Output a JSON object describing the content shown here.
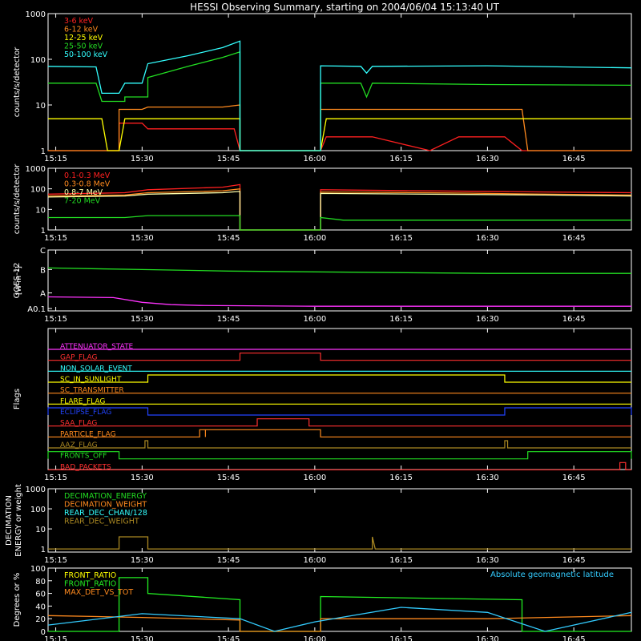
{
  "title": "HESSI Observing Summary, starting on 2004/06/04 15:13:40 UT",
  "time_axis": {
    "unit": "UT",
    "start": "15:13:40",
    "end": "16:55:00",
    "ticks": [
      "15:15",
      "15:30",
      "15:45",
      "16:00",
      "16:15",
      "16:30",
      "16:45"
    ]
  },
  "chart_data": [
    {
      "id": "low-energy",
      "type": "line",
      "ylabel": "counts/s/detector",
      "yscale": "log",
      "ylim": [
        1,
        1000
      ],
      "yticks": [
        "1",
        "10",
        "100",
        "1000"
      ],
      "legend": "top-left",
      "series": [
        {
          "name": "3-6 keV",
          "color": "#ff2020",
          "points": [
            [
              "15:13:40",
              1
            ],
            [
              "15:26",
              1
            ],
            [
              "15:26",
              4
            ],
            [
              "15:30",
              4
            ],
            [
              "15:31",
              3
            ],
            [
              "15:43",
              3
            ],
            [
              "15:46",
              3
            ],
            [
              "15:47",
              1
            ],
            [
              "16:01",
              1
            ],
            [
              "16:02",
              2
            ],
            [
              "16:10",
              2
            ],
            [
              "16:20",
              1
            ],
            [
              "16:25",
              2
            ],
            [
              "16:33",
              2
            ],
            [
              "16:36",
              1
            ],
            [
              "16:55",
              1
            ]
          ]
        },
        {
          "name": "6-12 keV",
          "color": "#ff8a1e",
          "points": [
            [
              "15:13:40",
              1
            ],
            [
              "15:26",
              1
            ],
            [
              "15:26",
              8
            ],
            [
              "15:30",
              8
            ],
            [
              "15:31",
              9
            ],
            [
              "15:44",
              9
            ],
            [
              "15:47",
              10
            ],
            [
              "15:47",
              1
            ],
            [
              "16:01",
              1
            ],
            [
              "16:01",
              8
            ],
            [
              "16:36",
              8
            ],
            [
              "16:37",
              1
            ],
            [
              "16:55",
              1
            ]
          ]
        },
        {
          "name": "12-25 keV",
          "color": "#ffff00",
          "points": [
            [
              "15:13:40",
              5
            ],
            [
              "15:23",
              5
            ],
            [
              "15:24",
              1
            ],
            [
              "15:26",
              1
            ],
            [
              "15:27",
              5
            ],
            [
              "15:47",
              5
            ],
            [
              "15:47",
              1
            ],
            [
              "16:01",
              1
            ],
            [
              "16:02",
              5
            ],
            [
              "16:36",
              5
            ],
            [
              "16:38",
              5
            ],
            [
              "16:55",
              5
            ]
          ]
        },
        {
          "name": "25-50 keV",
          "color": "#22dd22",
          "points": [
            [
              "15:13:40",
              30
            ],
            [
              "15:22",
              30
            ],
            [
              "15:23",
              12
            ],
            [
              "15:27",
              12
            ],
            [
              "15:27",
              15
            ],
            [
              "15:31",
              15
            ],
            [
              "15:31",
              40
            ],
            [
              "15:38",
              70
            ],
            [
              "15:44",
              110
            ],
            [
              "15:47",
              145
            ],
            [
              "15:47",
              1
            ],
            [
              "16:01",
              1
            ],
            [
              "16:01",
              30
            ],
            [
              "16:08",
              30
            ],
            [
              "16:09",
              15
            ],
            [
              "16:10",
              30
            ],
            [
              "16:30",
              28
            ],
            [
              "16:55",
              27
            ]
          ]
        },
        {
          "name": "50-100 keV",
          "color": "#33ffff",
          "points": [
            [
              "15:13:40",
              70
            ],
            [
              "15:22",
              68
            ],
            [
              "15:23",
              18
            ],
            [
              "15:26",
              18
            ],
            [
              "15:27",
              30
            ],
            [
              "15:30",
              30
            ],
            [
              "15:31",
              80
            ],
            [
              "15:38",
              120
            ],
            [
              "15:44",
              180
            ],
            [
              "15:47",
              250
            ],
            [
              "15:47",
              1
            ],
            [
              "16:01",
              1
            ],
            [
              "16:01",
              72
            ],
            [
              "16:08",
              70
            ],
            [
              "16:09",
              50
            ],
            [
              "16:10",
              70
            ],
            [
              "16:30",
              72
            ],
            [
              "16:55",
              65
            ]
          ]
        }
      ]
    },
    {
      "id": "high-energy",
      "type": "line",
      "ylabel": "counts/s/detector",
      "yscale": "log",
      "ylim": [
        1,
        1000
      ],
      "yticks": [
        "1",
        "10",
        "100",
        "1000"
      ],
      "legend": "top-left",
      "series": [
        {
          "name": "0.1-0.3 MeV",
          "color": "#ff2020",
          "points": [
            [
              "15:13:40",
              55
            ],
            [
              "15:27",
              65
            ],
            [
              "15:31",
              90
            ],
            [
              "15:44",
              120
            ],
            [
              "15:47",
              160
            ],
            [
              "15:47",
              1
            ],
            [
              "16:01",
              1
            ],
            [
              "16:01",
              90
            ],
            [
              "16:20",
              80
            ],
            [
              "16:40",
              70
            ],
            [
              "16:55",
              65
            ]
          ]
        },
        {
          "name": "0.3-0.8 MeV",
          "color": "#ff8a1e",
          "points": [
            [
              "15:13:40",
              45
            ],
            [
              "15:27",
              50
            ],
            [
              "15:31",
              65
            ],
            [
              "15:44",
              80
            ],
            [
              "15:47",
              100
            ],
            [
              "15:47",
              1
            ],
            [
              "16:01",
              1
            ],
            [
              "16:01",
              70
            ],
            [
              "16:20",
              65
            ],
            [
              "16:40",
              55
            ],
            [
              "16:55",
              50
            ]
          ]
        },
        {
          "name": "0.8-7 MeV",
          "color": "#ffffaa",
          "points": [
            [
              "15:13:40",
              40
            ],
            [
              "15:27",
              45
            ],
            [
              "15:31",
              55
            ],
            [
              "15:44",
              65
            ],
            [
              "15:47",
              75
            ],
            [
              "15:47",
              1
            ],
            [
              "16:01",
              1
            ],
            [
              "16:01",
              60
            ],
            [
              "16:20",
              55
            ],
            [
              "16:40",
              50
            ],
            [
              "16:55",
              45
            ]
          ]
        },
        {
          "name": "7-20 MeV",
          "color": "#22dd22",
          "points": [
            [
              "15:13:40",
              4
            ],
            [
              "15:27",
              4
            ],
            [
              "15:31",
              5
            ],
            [
              "15:44",
              5
            ],
            [
              "15:47",
              5
            ],
            [
              "15:47",
              1
            ],
            [
              "16:01",
              1
            ],
            [
              "16:01",
              4
            ],
            [
              "16:05",
              3
            ],
            [
              "16:30",
              3
            ],
            [
              "16:55",
              3
            ]
          ]
        }
      ]
    },
    {
      "id": "goes",
      "type": "line",
      "ylabel": "GOES-12",
      "yunit": "[W m⁻²]",
      "yscale": "log",
      "yticks": [
        "A0.1",
        "A",
        "B",
        "C"
      ],
      "series": [
        {
          "color": "#22dd22",
          "points": [
            [
              "15:13:40",
              6.2
            ],
            [
              "15:30",
              6.0
            ],
            [
              "15:45",
              5.8
            ],
            [
              "16:00",
              5.7
            ],
            [
              "16:30",
              5.5
            ],
            [
              "16:55",
              5.5
            ]
          ]
        },
        {
          "color": "#ff33ff",
          "points": [
            [
              "15:13:40",
              2.5
            ],
            [
              "15:25",
              2.4
            ],
            [
              "15:30",
              1.8
            ],
            [
              "15:35",
              1.5
            ],
            [
              "15:40",
              1.4
            ],
            [
              "16:00",
              1.3
            ],
            [
              "16:55",
              1.3
            ]
          ]
        }
      ]
    },
    {
      "id": "flags",
      "type": "line",
      "ylabel": "Flags",
      "series": [
        {
          "name": "ATTENUATOR_STATE",
          "color": "#ff33ff",
          "on": []
        },
        {
          "name": "GAP_FLAG",
          "color": "#ff3030",
          "on": [
            [
              "15:47",
              "16:01"
            ]
          ]
        },
        {
          "name": "NON_SOLAR_EVENT",
          "color": "#33ffff",
          "on": []
        },
        {
          "name": "SC_IN_SUNLIGHT",
          "color": "#ffff00",
          "on": [
            [
              "15:31",
              "16:33"
            ]
          ]
        },
        {
          "name": "SC_TRANSMITTER",
          "color": "#ff8a1e",
          "on": []
        },
        {
          "name": "FLARE_FLAG",
          "color": "#ffff00",
          "on": []
        },
        {
          "name": "ECLIPSE_FLAG",
          "color": "#2244ff",
          "on": [
            [
              "15:13:40",
              "15:31"
            ],
            [
              "16:33",
              "16:55"
            ]
          ]
        },
        {
          "name": "SAA_FLAG",
          "color": "#ff3030",
          "on": [
            [
              "15:50",
              "15:59"
            ]
          ]
        },
        {
          "name": "PARTICLE_FLAG",
          "color": "#ff8a1e",
          "on": [
            [
              "15:40",
              "15:41"
            ],
            [
              "15:41",
              "16:01"
            ]
          ]
        },
        {
          "name": "AAZ_FLAG",
          "color": "#aa8822",
          "on": [
            [
              "15:30:30",
              "15:31"
            ],
            [
              "16:33",
              "16:33:30"
            ]
          ]
        },
        {
          "name": "FRONTS_OFF",
          "color": "#22dd22",
          "on": [
            [
              "15:13:40",
              "15:26"
            ],
            [
              "16:37",
              "16:55"
            ]
          ]
        },
        {
          "name": "BAD_PACKETS",
          "color": "#ff3030",
          "on": [
            [
              "16:53",
              "16:54"
            ]
          ]
        }
      ]
    },
    {
      "id": "decimation",
      "type": "line",
      "ylabel": "DECIMATION",
      "ylabel2": "ENERGY or weight",
      "yscale": "log",
      "yticks": [
        "1",
        "10",
        "100",
        "1000"
      ],
      "legend": "top-left",
      "series": [
        {
          "name": "DECIMATION_ENERGY",
          "color": "#22dd22",
          "points": []
        },
        {
          "name": "DECIMATION_WEIGHT",
          "color": "#ff8a1e",
          "points": []
        },
        {
          "name": "REAR_DEC_CHAN/128",
          "color": "#33ffff",
          "points": []
        },
        {
          "name": "REAR_DEC_WEIGHT",
          "color": "#aa8822",
          "points": [
            [
              "15:13:40",
              1
            ],
            [
              "15:26",
              1
            ],
            [
              "15:26",
              4
            ],
            [
              "15:31",
              4
            ],
            [
              "15:31",
              1
            ],
            [
              "16:10",
              1
            ],
            [
              "16:10",
              4
            ],
            [
              "16:10:30",
              1
            ],
            [
              "16:55",
              1
            ]
          ]
        }
      ]
    },
    {
      "id": "ratios",
      "type": "line",
      "ylabel": "Degrees or %",
      "ylim": [
        0,
        100
      ],
      "yticks": [
        "0",
        "20",
        "40",
        "60",
        "80",
        "100"
      ],
      "legend": "top-left",
      "annotation": "Absolute geomagnetic latitude",
      "annotation_color": "#33ccff",
      "series": [
        {
          "name": "FRONT_RATIO",
          "color": "#ffff00",
          "points": []
        },
        {
          "name": "FRONT_RATIO",
          "color": "#22ee22",
          "points": [
            [
              "15:13:40",
              0
            ],
            [
              "15:26",
              0
            ],
            [
              "15:26",
              85
            ],
            [
              "15:31",
              85
            ],
            [
              "15:31",
              60
            ],
            [
              "15:47",
              50
            ],
            [
              "15:47",
              0
            ],
            [
              "16:01",
              0
            ],
            [
              "16:01",
              55
            ],
            [
              "16:36",
              50
            ],
            [
              "16:36",
              0
            ],
            [
              "16:55",
              0
            ]
          ]
        },
        {
          "name": "MAX_DET_VS_TOT",
          "color": "#ff8a1e",
          "points": [
            [
              "15:13:40",
              25
            ],
            [
              "15:30",
              22
            ],
            [
              "15:47",
              18
            ],
            [
              "15:47",
              0
            ],
            [
              "16:01",
              0
            ],
            [
              "16:01",
              20
            ],
            [
              "16:30",
              20
            ],
            [
              "16:55",
              25
            ]
          ]
        },
        {
          "name": "Absolute geomagnetic latitude",
          "color": "#33ccff",
          "points": [
            [
              "15:13:40",
              10
            ],
            [
              "15:30",
              28
            ],
            [
              "15:47",
              20
            ],
            [
              "15:53",
              0
            ],
            [
              "16:00",
              15
            ],
            [
              "16:15",
              38
            ],
            [
              "16:30",
              30
            ],
            [
              "16:40",
              0
            ],
            [
              "16:55",
              30
            ]
          ]
        }
      ]
    }
  ]
}
